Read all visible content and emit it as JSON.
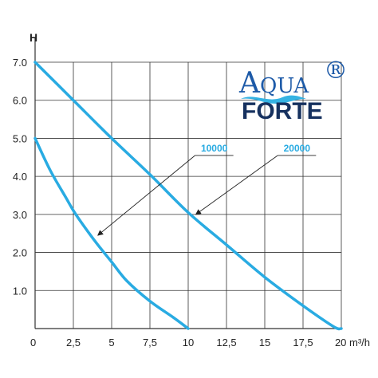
{
  "colors": {
    "curve": "#29abe2",
    "grid": "#333333",
    "text": "#222222",
    "logo_blue": "#1d5aa8",
    "logo_navy": "#16315f",
    "logo_wave": "#35b3e3"
  },
  "logo": {
    "line1": "AQUA",
    "line1_first": "A",
    "line1_rest": "QUA",
    "line2": "FORTE",
    "registered": "®"
  },
  "chart_data": {
    "type": "line",
    "title": "",
    "ylabel": "H",
    "xlabel_ticks_unit": "m³/h",
    "xlim": [
      0,
      20
    ],
    "ylim": [
      0,
      7
    ],
    "grid": true,
    "x_ticks": [
      {
        "v": 0,
        "label": "0"
      },
      {
        "v": 2.5,
        "label": "2,5"
      },
      {
        "v": 5,
        "label": "5"
      },
      {
        "v": 7.5,
        "label": "7,5"
      },
      {
        "v": 10,
        "label": "10"
      },
      {
        "v": 12.5,
        "label": "12,5"
      },
      {
        "v": 15,
        "label": "15"
      },
      {
        "v": 17.5,
        "label": "17,5"
      },
      {
        "v": 20,
        "label": "20 m³/h"
      }
    ],
    "y_ticks": [
      {
        "v": 1,
        "label": "1.0"
      },
      {
        "v": 2,
        "label": "2.0"
      },
      {
        "v": 3,
        "label": "3.0"
      },
      {
        "v": 4,
        "label": "4.0"
      },
      {
        "v": 5,
        "label": "5.0"
      },
      {
        "v": 6,
        "label": "6.0"
      },
      {
        "v": 7,
        "label": "7.0"
      }
    ],
    "series": [
      {
        "name": "10000",
        "points": [
          [
            0,
            5.0
          ],
          [
            1,
            4.15
          ],
          [
            2,
            3.45
          ],
          [
            2.5,
            3.1
          ],
          [
            3,
            2.8
          ],
          [
            4,
            2.25
          ],
          [
            5,
            1.75
          ],
          [
            6,
            1.25
          ],
          [
            7.5,
            0.72
          ],
          [
            9,
            0.3
          ],
          [
            10,
            0.0
          ]
        ],
        "callout": {
          "label_at": [
            11.7,
            4.55
          ],
          "arrow_to": [
            4.1,
            2.45
          ]
        }
      },
      {
        "name": "20000",
        "points": [
          [
            0,
            7.0
          ],
          [
            2.5,
            6.0
          ],
          [
            5,
            5.0
          ],
          [
            7.5,
            4.05
          ],
          [
            10,
            3.05
          ],
          [
            12.5,
            2.2
          ],
          [
            15,
            1.35
          ],
          [
            17.5,
            0.6
          ],
          [
            19.5,
            0.05
          ],
          [
            20,
            0.0
          ]
        ],
        "callout": {
          "label_at": [
            17.1,
            4.55
          ],
          "arrow_to": [
            10.5,
            3.0
          ]
        }
      }
    ]
  }
}
